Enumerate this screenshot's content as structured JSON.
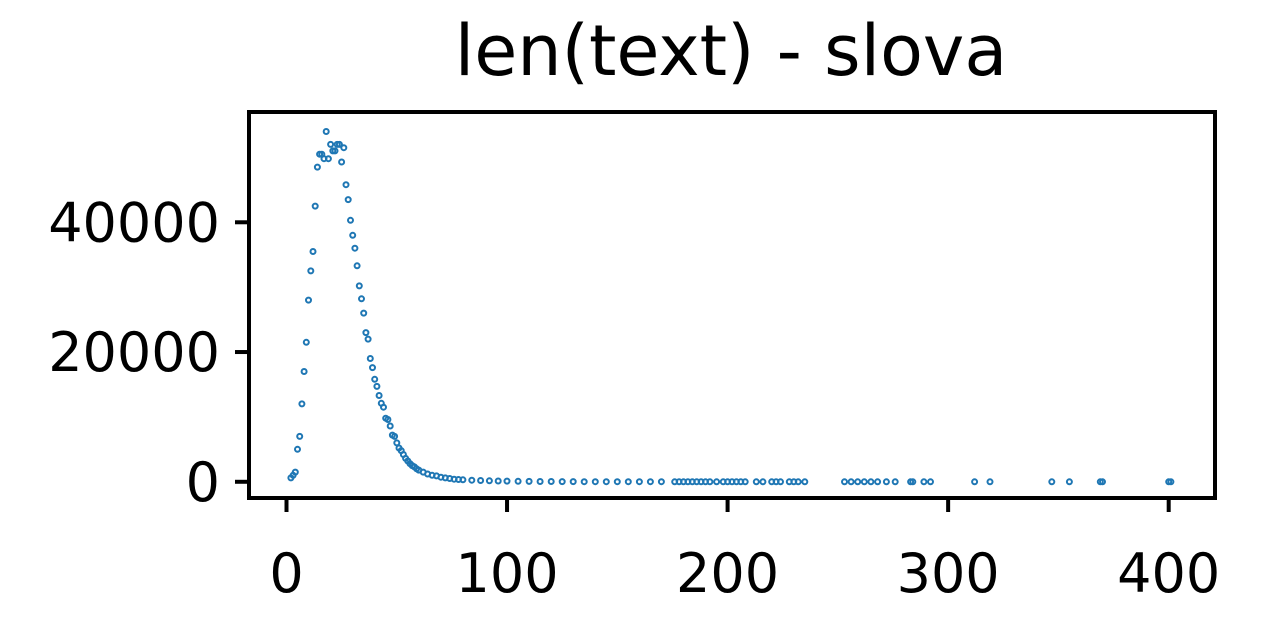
{
  "chart_data": {
    "type": "scatter",
    "title": "len(text) - slova",
    "xlabel": "",
    "ylabel": "",
    "xlim": [
      -17,
      421
    ],
    "ylim": [
      -2500,
      57000
    ],
    "xticks": [
      0,
      100,
      200,
      300,
      400
    ],
    "yticks": [
      0,
      20000,
      40000
    ],
    "xtick_labels": [
      "0",
      "100",
      "200",
      "300",
      "400"
    ],
    "ytick_labels": [
      "0",
      "20000",
      "40000"
    ],
    "grid": false,
    "color": "#1f77b4",
    "x": [
      2,
      3,
      4,
      5,
      6,
      7,
      8,
      9,
      10,
      11,
      12,
      13,
      14,
      15,
      16,
      17,
      18,
      19,
      20,
      21,
      22,
      23,
      24,
      25,
      26,
      27,
      28,
      29,
      30,
      31,
      32,
      33,
      34,
      35,
      36,
      37,
      38,
      39,
      40,
      41,
      42,
      43,
      44,
      45,
      46,
      47,
      48,
      49,
      50,
      51,
      52,
      53,
      54,
      55,
      56,
      57,
      58,
      59,
      60,
      62,
      64,
      66,
      68,
      70,
      72,
      74,
      76,
      78,
      80,
      84,
      88,
      92,
      96,
      100,
      105,
      110,
      115,
      120,
      125,
      130,
      135,
      140,
      145,
      150,
      155,
      160,
      165,
      170,
      176,
      178,
      180,
      182,
      184,
      186,
      188,
      190,
      192,
      195,
      198,
      200,
      202,
      204,
      206,
      208,
      213,
      216,
      220,
      222,
      224,
      228,
      230,
      232,
      235,
      253,
      256,
      259,
      262,
      265,
      268,
      272,
      276,
      283,
      284,
      289,
      292,
      312,
      319,
      347,
      355,
      369,
      370,
      400,
      401
    ],
    "y": [
      600,
      1000,
      1500,
      5000,
      7000,
      12000,
      17000,
      21500,
      28000,
      32500,
      35500,
      42500,
      48500,
      50500,
      50500,
      49800,
      54000,
      49800,
      52000,
      51000,
      51000,
      52000,
      52000,
      49300,
      51500,
      45800,
      43500,
      40300,
      38000,
      36000,
      33300,
      30200,
      28200,
      26000,
      23000,
      22000,
      19000,
      17600,
      15800,
      14700,
      13300,
      12100,
      11500,
      9800,
      9600,
      8600,
      7200,
      7000,
      6000,
      5200,
      4800,
      4200,
      3600,
      3200,
      2800,
      2500,
      2300,
      2000,
      1800,
      1500,
      1200,
      1000,
      900,
      700,
      600,
      500,
      400,
      350,
      300,
      250,
      200,
      150,
      120,
      100,
      80,
      60,
      50,
      40,
      30,
      25,
      20,
      18,
      15,
      12,
      10,
      8,
      6,
      5,
      4,
      4,
      3,
      3,
      3,
      2,
      2,
      2,
      2,
      2,
      2,
      1,
      1,
      1,
      1,
      1,
      1,
      1,
      1,
      1,
      1,
      1,
      1,
      1,
      1,
      1,
      1,
      1,
      1,
      1,
      1,
      1,
      1,
      1,
      1,
      1,
      1,
      1,
      1,
      1,
      1,
      1,
      1,
      1,
      1
    ]
  }
}
